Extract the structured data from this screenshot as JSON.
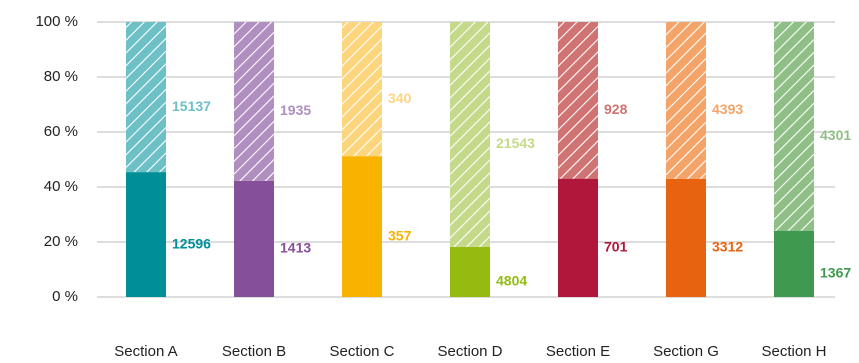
{
  "chart_data": {
    "type": "bar",
    "stacking": "percent",
    "categories": [
      "Section A",
      "Section B",
      "Section C",
      "Section D",
      "Section E",
      "Section G",
      "Section H"
    ],
    "series": [
      {
        "values": [
          12596,
          1413,
          357,
          4804,
          701,
          3312,
          1367
        ],
        "colors": [
          "#008f98",
          "#864f99",
          "#f8b300",
          "#95bb11",
          "#b0173a",
          "#e8630f",
          "#3f9a4f"
        ]
      },
      {
        "values": [
          15137,
          1935,
          340,
          21543,
          928,
          4393,
          4301
        ],
        "colors": [
          "#6cc0c6",
          "#b08ec0",
          "#fdd57d",
          "#c5d98a",
          "#cf7373",
          "#f4a469",
          "#8fbf86"
        ],
        "pattern": "hatch"
      }
    ],
    "ylim": [
      0,
      100
    ],
    "yticks": [
      {
        "value": 0,
        "label": "0 %"
      },
      {
        "value": 20,
        "label": "20 %"
      },
      {
        "value": 40,
        "label": "40 %"
      },
      {
        "value": 60,
        "label": "60 %"
      },
      {
        "value": 80,
        "label": "80 %"
      },
      {
        "value": 100,
        "label": "100 %"
      }
    ],
    "grid": true
  }
}
